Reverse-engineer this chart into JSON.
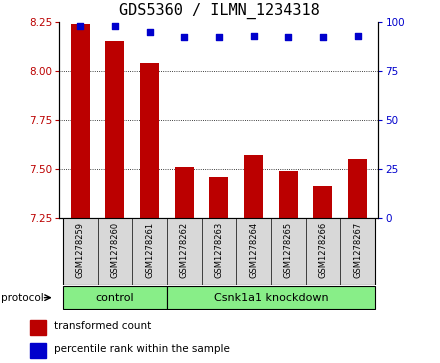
{
  "title": "GDS5360 / ILMN_1234318",
  "samples": [
    "GSM1278259",
    "GSM1278260",
    "GSM1278261",
    "GSM1278262",
    "GSM1278263",
    "GSM1278264",
    "GSM1278265",
    "GSM1278266",
    "GSM1278267"
  ],
  "red_values": [
    8.24,
    8.15,
    8.04,
    7.51,
    7.46,
    7.57,
    7.49,
    7.41,
    7.55
  ],
  "blue_values": [
    98,
    98,
    95,
    92,
    92,
    93,
    92,
    92,
    93
  ],
  "ylim_left": [
    7.25,
    8.25
  ],
  "ylim_right": [
    0,
    100
  ],
  "yticks_left": [
    7.25,
    7.5,
    7.75,
    8.0,
    8.25
  ],
  "yticks_right": [
    0,
    25,
    50,
    75,
    100
  ],
  "bar_color": "#bb0000",
  "dot_color": "#0000cc",
  "bar_width": 0.55,
  "ctrl_count": 3,
  "groups": [
    {
      "label": "control",
      "color": "#88ee88"
    },
    {
      "label": "Csnk1a1 knockdown",
      "color": "#88ee88"
    }
  ],
  "protocol_label": "protocol",
  "legend_red": "transformed count",
  "legend_blue": "percentile rank within the sample",
  "title_fontsize": 11,
  "tick_fontsize": 7.5,
  "sample_fontsize": 6,
  "proto_fontsize": 8,
  "legend_fontsize": 7.5
}
